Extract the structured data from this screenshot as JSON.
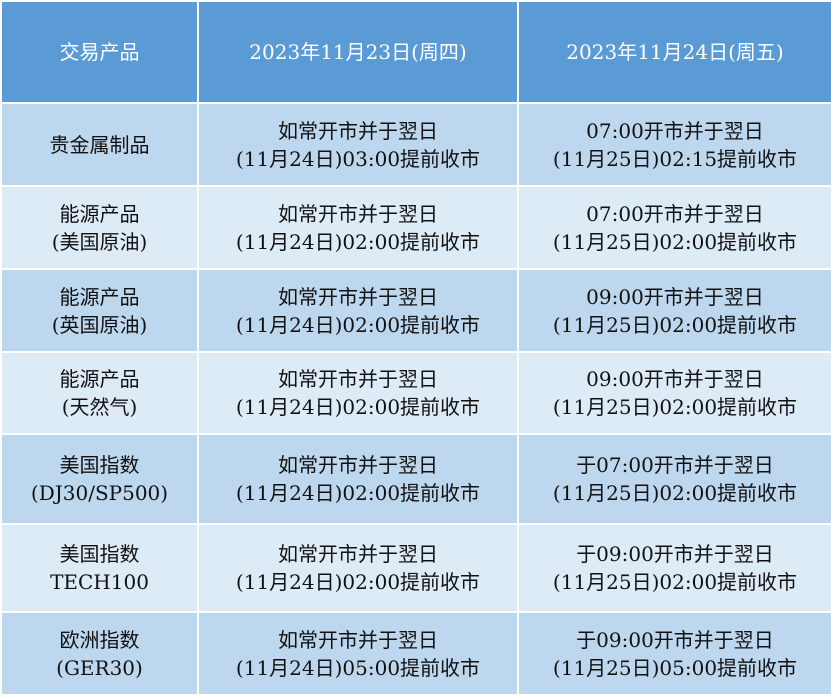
{
  "header": [
    "交易产品",
    "2023年11月23日(周四)",
    "2023年11月24日(周五)"
  ],
  "rows": [
    {
      "product": [
        "贵金属制品",
        ""
      ],
      "d23": [
        "如常开市并于翌日",
        "(11月24日)03:00提前收市"
      ],
      "d24": [
        "07:00开市并于翌日",
        "(11月25日)02:15提前收市"
      ]
    },
    {
      "product": [
        "能源产品",
        "(美国原油)"
      ],
      "d23": [
        "如常开市并于翌日",
        "(11月24日)02:00提前收市"
      ],
      "d24": [
        "07:00开市并于翌日",
        "(11月25日)02:00提前收市"
      ]
    },
    {
      "product": [
        "能源产品",
        "(英国原油)"
      ],
      "d23": [
        "如常开市并于翌日",
        "(11月24日)02:00提前收市"
      ],
      "d24": [
        "09:00开市并于翌日",
        "(11月25日)02:00提前收市"
      ]
    },
    {
      "product": [
        "能源产品",
        "(天然气)"
      ],
      "d23": [
        "如常开市并于翌日",
        "(11月24日)02:00提前收市"
      ],
      "d24": [
        "09:00开市并于翌日",
        "(11月25日)02:00提前收市"
      ]
    },
    {
      "product": [
        "美国指数",
        "(DJ30/SP500)"
      ],
      "d23": [
        "如常开市并于翌日",
        "(11月24日)02:00提前收市"
      ],
      "d24": [
        "于07:00开市并于翌日",
        "(11月25日)02:00提前收市"
      ]
    },
    {
      "product": [
        "美国指数",
        "TECH100"
      ],
      "d23": [
        "如常开市并于翌日",
        "(11月24日)02:00提前收市"
      ],
      "d24": [
        "于09:00开市并于翌日",
        "(11月25日)02:00提前收市"
      ]
    },
    {
      "product": [
        "欧洲指数",
        "(GER30)"
      ],
      "d23": [
        "如常开市并于翌日",
        "(11月24日)05:00提前收市"
      ],
      "d24": [
        "于09:00开市并于翌日",
        "(11月25日)05:00提前收市"
      ]
    }
  ]
}
